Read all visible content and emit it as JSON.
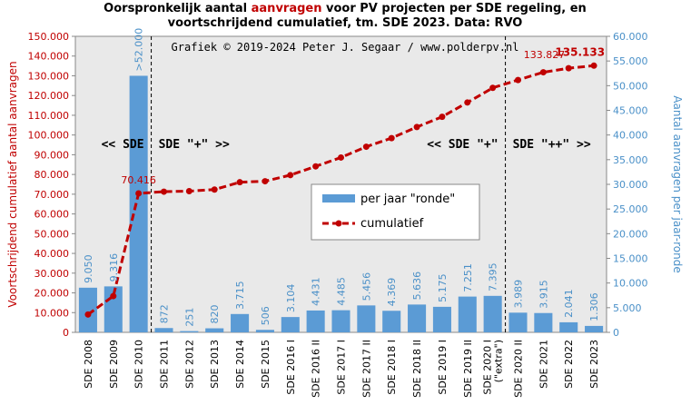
{
  "chart_data": {
    "type": "bar",
    "title_parts": [
      {
        "text": "Oorspronkelijk  aantal ",
        "highlight": false
      },
      {
        "text": "aanvragen",
        "highlight": true
      },
      {
        "text": " voor PV projecten per SDE regeling, en",
        "highlight": false
      }
    ],
    "title_line2": "voortschrijdend  cumulatief, tm. SDE 2023. Data: RVO",
    "credit": "Grafiek © 2019-2024 Peter J. Segaar / www.polderpv.nl",
    "ylabel_left": "Voortschrijdend cumulatief aantal aanvragen",
    "ylabel_right": "Aantal aanvragen per jaar-ronde",
    "ylim_left": [
      0,
      150000
    ],
    "ylim_right": [
      0,
      60000
    ],
    "left_ticks": [
      "0",
      "10.000",
      "20.000",
      "30.000",
      "40.000",
      "50.000",
      "60.000",
      "70.000",
      "80.000",
      "90.000",
      "100.000",
      "110.000",
      "120.000",
      "130.000",
      "140.000",
      "150.000"
    ],
    "right_ticks": [
      "0",
      "5.000",
      "10.000",
      "15.000",
      "20.000",
      "25.000",
      "30.000",
      "35.000",
      "40.000",
      "45.000",
      "50.000",
      "55.000",
      "60.000"
    ],
    "categories": [
      "SDE 2008",
      "SDE 2009",
      "SDE 2010",
      "SDE 2011",
      "SDE 2012",
      "SDE 2013",
      "SDE 2014",
      "SDE 2015",
      "SDE 2016 I",
      "SDE 2016 II",
      "SDE 2017 I",
      "SDE 2017 II",
      "SDE 2018 I",
      "SDE 2018 II",
      "SDE 2019 I",
      "SDE 2019 II",
      "SDE 2020 I",
      "SDE 2020 II",
      "SDE 2021",
      "SDE 2022",
      "SDE 2023"
    ],
    "category_sublabels": {
      "16": "(\"extra\")"
    },
    "series": [
      {
        "name": "per jaar \"ronde\"",
        "axis": "right",
        "color": "#5b9bd5",
        "values": [
          9050,
          9316,
          52000,
          872,
          251,
          820,
          3715,
          506,
          3104,
          4431,
          4485,
          5456,
          4369,
          5636,
          5175,
          7251,
          7395,
          3989,
          3915,
          2041,
          1306
        ],
        "labels": [
          "9.050",
          "9.316",
          ">52.000",
          "872",
          "251",
          "820",
          "3.715",
          "506",
          "3.104",
          "4.431",
          "4.485",
          "5.456",
          "4.369",
          "5.636",
          "5.175",
          "7.251",
          "7.395",
          "3.989",
          "3.915",
          "2.041",
          "1.306"
        ]
      },
      {
        "name": "cumulatief",
        "axis": "left",
        "color": "#c00000",
        "values": [
          9050,
          18366,
          70416,
          71288,
          71539,
          72359,
          76074,
          76580,
          79684,
          84115,
          88600,
          94056,
          98425,
          104061,
          109236,
          116487,
          123882,
          127871,
          131786,
          133827,
          135133
        ]
      }
    ],
    "point_labels": [
      {
        "index": 2,
        "text": "70.416",
        "bold": false
      },
      {
        "index": 19,
        "text": "133.827",
        "bold": false
      },
      {
        "index": 20,
        "text": "135.133",
        "bold": true
      }
    ],
    "eras": [
      {
        "text": "<< SDE",
        "side": "left",
        "divider_after": 2
      },
      {
        "text": "SDE \"+\" >>",
        "side": "right",
        "divider_after": 2
      },
      {
        "text": "<< SDE \"+\"",
        "side": "left",
        "divider_after": 16
      },
      {
        "text": "SDE \"++\" >>",
        "side": "right",
        "divider_after": 16
      }
    ],
    "legend_position": "center-right",
    "grid": false
  }
}
